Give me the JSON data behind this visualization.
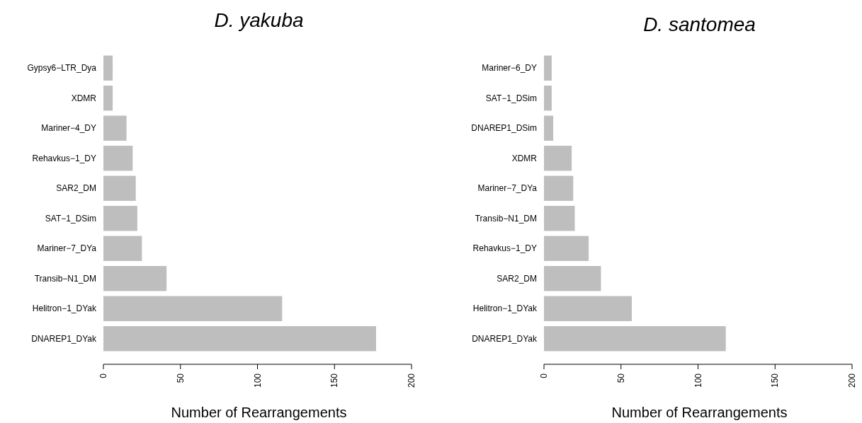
{
  "chart_data": [
    {
      "type": "bar",
      "orientation": "horizontal",
      "title": "D. yakuba",
      "xlabel": "Number of Rearrangements",
      "categories": [
        "Gypsy6−LTR_Dya",
        "XDMR",
        "Mariner−4_DY",
        "Rehavkus−1_DY",
        "SAR2_DM",
        "SAT−1_DSim",
        "Mariner−7_DYa",
        "Transib−N1_DM",
        "Helitron−1_DYak",
        "DNAREP1_DYak"
      ],
      "values": [
        6,
        6,
        15,
        19,
        21,
        22,
        25,
        41,
        116,
        177
      ],
      "color": "#bebebe",
      "xlim": [
        0,
        200
      ],
      "xticks": [
        0,
        50,
        100,
        150,
        200
      ],
      "grid": false
    },
    {
      "type": "bar",
      "orientation": "horizontal",
      "title": "D. santomea",
      "xlabel": "Number of Rearrangements",
      "categories": [
        "Mariner−6_DY",
        "SAT−1_DSim",
        "DNAREP1_DSim",
        "XDMR",
        "Mariner−7_DYa",
        "Transib−N1_DM",
        "Rehavkus−1_DY",
        "SAR2_DM",
        "Helitron−1_DYak",
        "DNAREP1_DYak"
      ],
      "values": [
        5,
        5,
        6,
        18,
        19,
        20,
        29,
        37,
        57,
        118
      ],
      "color": "#bebebe",
      "xlim": [
        0,
        200
      ],
      "xticks": [
        0,
        50,
        100,
        150,
        200
      ],
      "grid": false
    }
  ]
}
